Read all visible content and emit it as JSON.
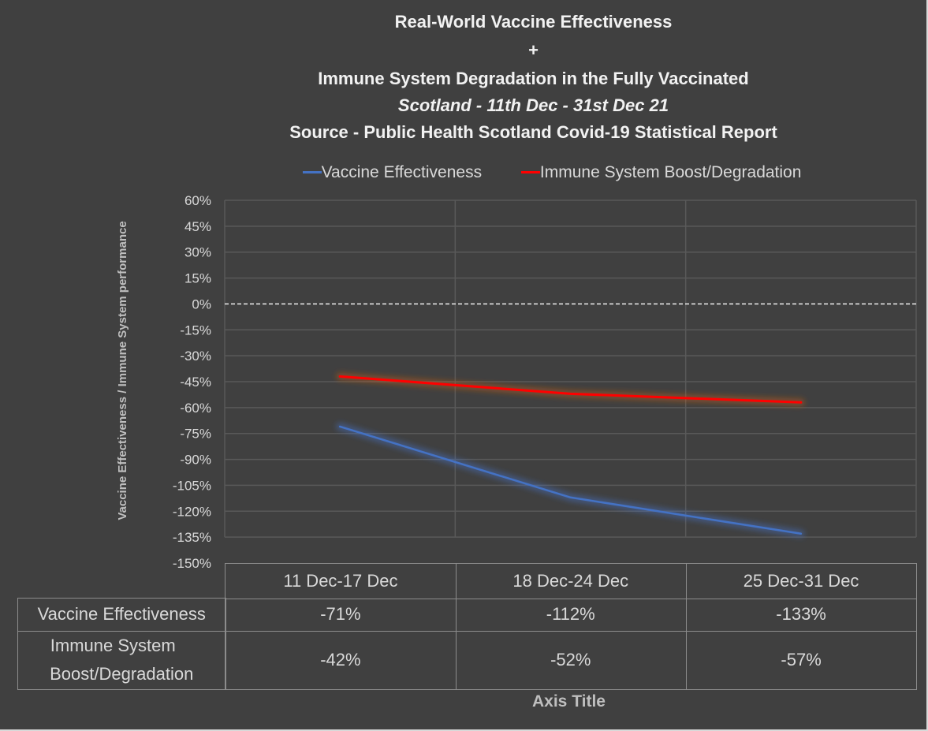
{
  "chart_data": {
    "type": "line",
    "title": [
      "Real-World Vaccine Effectiveness",
      "+",
      "Immune System Degradation in the Fully Vaccinated"
    ],
    "subtitle": "Scotland - 11th Dec - 31st Dec 21",
    "source": "Source - Public Health Scotland Covid-19 Statistical Report",
    "categories": [
      "11 Dec-17 Dec",
      "18 Dec-24 Dec",
      "25 Dec-31 Dec"
    ],
    "series": [
      {
        "name": "Vaccine Effectiveness",
        "values": [
          -71,
          -112,
          -133
        ],
        "display": [
          "-71%",
          "-112%",
          "-133%"
        ],
        "color": "#4472c4"
      },
      {
        "name": "Immune System Boost/Degradation",
        "table_label": [
          "Immune System",
          "Boost/Degradation"
        ],
        "values": [
          -42,
          -52,
          -57
        ],
        "display": [
          "-42%",
          "-52%",
          "-57%"
        ],
        "color": "#ff0000"
      }
    ],
    "ylabel": "Vaccine Effectiveness / Immune System performance",
    "xlabel": "Axis Title",
    "ylim": [
      -150,
      60
    ],
    "ytick_step": 15,
    "yticks": [
      "60%",
      "45%",
      "30%",
      "15%",
      "0%",
      "-15%",
      "-30%",
      "-45%",
      "-60%",
      "-75%",
      "-90%",
      "-105%",
      "-120%",
      "-135%",
      "-150%"
    ],
    "grid": true,
    "zero_line": "dashed",
    "legend_position": "top",
    "data_table": true
  },
  "colors": {
    "background": "#404040",
    "grid": "#595959",
    "text": "#d9d9d9",
    "title": "#f2f2f2"
  }
}
